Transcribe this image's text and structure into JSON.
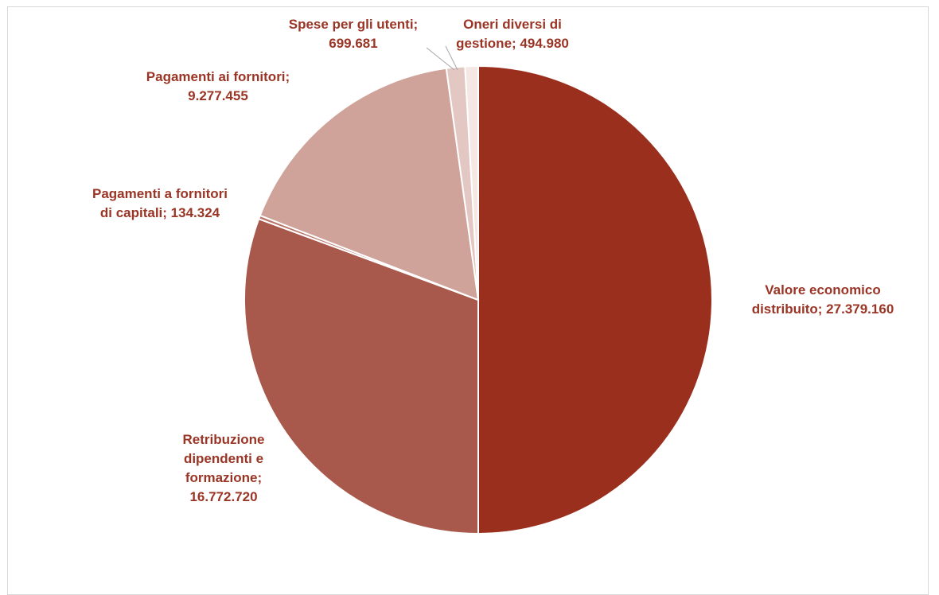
{
  "chart_data": {
    "type": "pie",
    "title": "",
    "label_color": "#9a3526",
    "slices": [
      {
        "name": "Valore economico distribuito",
        "value": 27379160,
        "label_lines": [
          "Valore economico",
          "distribuito;  27.379.160"
        ],
        "color": "#9a2f1e"
      },
      {
        "name": "Retribuzione dipendenti e formazione",
        "value": 16772720,
        "label_lines": [
          "Retribuzione",
          "dipendenti e",
          "formazione;",
          "16.772.720"
        ],
        "color": "#a8594c"
      },
      {
        "name": "Pagamenti a fornitori di capitali",
        "value": 134324,
        "label_lines": [
          "Pagamenti a fornitori",
          "di capitali; 134.324"
        ],
        "color": "#b9756a"
      },
      {
        "name": "Pagamenti ai fornitori",
        "value": 9277455,
        "label_lines": [
          "Pagamenti ai fornitori;",
          "9.277.455"
        ],
        "color": "#cfa29a"
      },
      {
        "name": "Spese per gli utenti",
        "value": 699681,
        "label_lines": [
          "Spese per gli utenti;",
          "699.681"
        ],
        "color": "#e3c7c2"
      },
      {
        "name": "Oneri diversi di gestione",
        "value": 494980,
        "label_lines": [
          "Oneri diversi di",
          "gestione; 494.980"
        ],
        "color": "#f4e7e4"
      }
    ]
  }
}
